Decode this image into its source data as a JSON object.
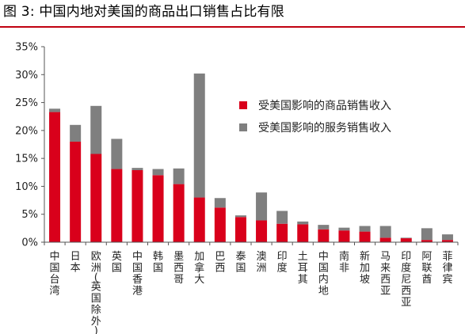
{
  "title": "图 3:  中国内地对美国的商品出口销售占比有限",
  "colors": {
    "goods": "#d9001b",
    "services": "#7f7f7f",
    "accent": "#c00010"
  },
  "chart_data": {
    "type": "bar",
    "stacked": true,
    "categories": [
      "中国台湾",
      "日本",
      "欧洲(英国除外)",
      "英国",
      "中国香港",
      "韩国",
      "墨西哥",
      "加拿大",
      "巴西",
      "泰国",
      "澳洲",
      "印度",
      "土耳其",
      "中国内地",
      "南非",
      "新加坡",
      "马来西亚",
      "印度尼西亚",
      "阿联酋",
      "菲律宾"
    ],
    "category_lines": [
      [
        "中",
        "国",
        "台",
        "湾"
      ],
      [
        "日",
        "本"
      ],
      [
        "欧",
        "洲",
        "(",
        "英",
        "国",
        "除",
        "外",
        ")"
      ],
      [
        "英",
        "国"
      ],
      [
        "中",
        "国",
        "香",
        "港"
      ],
      [
        "韩",
        "国"
      ],
      [
        "墨",
        "西",
        "哥"
      ],
      [
        "加",
        "拿",
        "大"
      ],
      [
        "巴",
        "西"
      ],
      [
        "泰",
        "国"
      ],
      [
        "澳",
        "洲"
      ],
      [
        "印",
        "度"
      ],
      [
        "土",
        "耳",
        "其"
      ],
      [
        "中",
        "国",
        "内",
        "地"
      ],
      [
        "南",
        "非"
      ],
      [
        "新",
        "加",
        "坡"
      ],
      [
        "马",
        "来",
        "西",
        "亚"
      ],
      [
        "印",
        "度",
        "尼",
        "西",
        "亚"
      ],
      [
        "阿",
        "联",
        "酋"
      ],
      [
        "菲",
        "律",
        "宾"
      ]
    ],
    "series": [
      {
        "name": "受美国影响的商品销售收入",
        "color": "#d9001b",
        "values": [
          23.3,
          18.0,
          15.8,
          13.1,
          12.9,
          12.0,
          10.4,
          8.0,
          6.2,
          4.5,
          3.9,
          3.3,
          3.2,
          2.3,
          2.1,
          1.9,
          0.8,
          0.7,
          0.4,
          0.4
        ]
      },
      {
        "name": "受美国影响的服务销售收入",
        "color": "#7f7f7f",
        "values": [
          0.6,
          3.0,
          8.6,
          5.4,
          0.4,
          1.1,
          2.8,
          22.2,
          1.7,
          0.3,
          5.0,
          2.3,
          0.5,
          0.8,
          0.5,
          1.0,
          2.1,
          0.1,
          2.1,
          1.0
        ]
      }
    ],
    "ylim": [
      0,
      35
    ],
    "yticks": [
      "0%",
      "5%",
      "10%",
      "15%",
      "20%",
      "25%",
      "30%",
      "35%"
    ],
    "ytick_values": [
      0,
      5,
      10,
      15,
      20,
      25,
      30,
      35
    ],
    "legend_position": "top-right",
    "grid": false
  }
}
